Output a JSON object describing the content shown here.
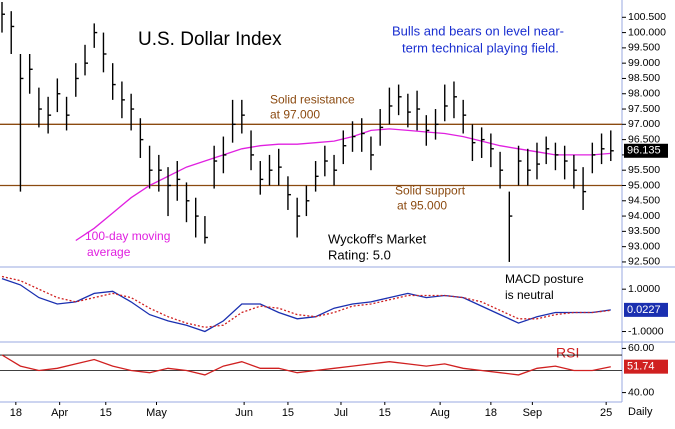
{
  "chart_data": [
    {
      "type": "ohlc",
      "title": "U.S. Dollar Index",
      "subtitle_lines": [
        "Bulls and bears on level near-",
        "term technical playing field."
      ],
      "rating_lines": [
        "Wyckoff's Market",
        "Rating: 5.0"
      ],
      "color": "#000000",
      "xlim": [
        0,
        134
      ],
      "ylim": [
        92.4,
        101.0
      ],
      "yticks": [
        {
          "value": 92.5,
          "label": "92.500"
        },
        {
          "value": 93,
          "label": "93.000"
        },
        {
          "value": 93.5,
          "label": "93.500"
        },
        {
          "value": 94,
          "label": "94.000"
        },
        {
          "value": 94.5,
          "label": "94.500"
        },
        {
          "value": 95,
          "label": "95.000"
        },
        {
          "value": 95.5,
          "label": "95.500"
        },
        {
          "value": 96,
          "label": "96.000"
        },
        {
          "value": 96.5,
          "label": "96.500"
        },
        {
          "value": 97,
          "label": "97.000"
        },
        {
          "value": 97.5,
          "label": "97.500"
        },
        {
          "value": 98,
          "label": "98.000"
        },
        {
          "value": 98.5,
          "label": "98.500"
        },
        {
          "value": 99,
          "label": "99.000"
        },
        {
          "value": 99.5,
          "label": "99.500"
        },
        {
          "value": 100,
          "label": "100.000"
        },
        {
          "value": 100.5,
          "label": "100.500"
        }
      ],
      "x": [
        0,
        2,
        4,
        6,
        8,
        10,
        12,
        14,
        16,
        18,
        20,
        22,
        24,
        26,
        28,
        30,
        32,
        34,
        36,
        38,
        40,
        42,
        44,
        46,
        48,
        50,
        52,
        54,
        56,
        58,
        60,
        62,
        64,
        66,
        68,
        70,
        72,
        74,
        76,
        78,
        80,
        82,
        84,
        86,
        88,
        90,
        92,
        94,
        96,
        98,
        100,
        102,
        104,
        106,
        108,
        110,
        112,
        114,
        116,
        118,
        120,
        122,
        124,
        126,
        128,
        130,
        132
      ],
      "high": [
        101.0,
        100.7,
        99.3,
        99.3,
        98.2,
        97.9,
        98.5,
        97.9,
        99.0,
        99.6,
        100.3,
        100.0,
        99.0,
        98.4,
        98.0,
        97.2,
        96.3,
        96.0,
        95.6,
        95.8,
        95.1,
        94.6,
        94.0,
        96.3,
        96.6,
        97.8,
        97.8,
        96.8,
        95.8,
        96.0,
        96.2,
        95.3,
        94.6,
        95.0,
        95.8,
        96.3,
        96.0,
        96.8,
        97.1,
        97.2,
        96.6,
        97.5,
        98.2,
        98.3,
        98.0,
        98.1,
        97.3,
        97.5,
        98.3,
        98.4,
        97.8,
        97.0,
        96.9,
        96.7,
        96.1,
        94.8,
        96.3,
        96.2,
        96.4,
        96.6,
        96.4,
        96.3,
        96.0,
        95.6,
        96.4,
        96.7,
        96.8
      ],
      "low": [
        100.0,
        99.3,
        94.8,
        98.0,
        96.9,
        96.7,
        97.4,
        96.8,
        97.9,
        98.6,
        99.5,
        98.7,
        97.8,
        97.2,
        96.8,
        95.9,
        94.9,
        94.8,
        94.0,
        94.5,
        93.8,
        93.3,
        93.1,
        94.9,
        95.4,
        96.4,
        96.7,
        95.5,
        94.7,
        95.0,
        95.0,
        94.2,
        93.3,
        94.0,
        94.8,
        95.3,
        95.0,
        95.7,
        96.1,
        96.1,
        95.5,
        96.3,
        97.0,
        97.3,
        96.9,
        96.8,
        96.3,
        96.5,
        97.1,
        97.2,
        96.7,
        95.8,
        95.9,
        95.6,
        94.9,
        92.5,
        95.0,
        95.0,
        95.2,
        95.7,
        95.5,
        95.2,
        94.9,
        94.2,
        95.4,
        95.7,
        95.8
      ],
      "close": [
        100.6,
        100.2,
        98.5,
        98.8,
        97.5,
        97.3,
        98.0,
        97.3,
        98.5,
        99.0,
        100.0,
        99.3,
        98.3,
        97.8,
        97.5,
        96.5,
        95.5,
        95.5,
        95.0,
        95.2,
        94.5,
        94.0,
        93.3,
        95.8,
        96.0,
        97.0,
        97.3,
        96.0,
        95.2,
        95.5,
        95.6,
        94.7,
        94.0,
        94.5,
        95.3,
        95.8,
        95.5,
        96.3,
        96.6,
        96.7,
        96.0,
        96.9,
        97.6,
        97.9,
        97.4,
        97.5,
        96.8,
        97.0,
        97.6,
        97.9,
        97.3,
        96.4,
        96.5,
        96.2,
        95.5,
        94.0,
        95.8,
        95.5,
        95.7,
        96.2,
        96.0,
        95.8,
        95.5,
        94.8,
        96.0,
        96.2,
        96.135
      ],
      "last": 96.135,
      "moving_average": {
        "label_lines": [
          "100-day moving",
          "average"
        ],
        "color": "#e020e0",
        "x": [
          16,
          20,
          24,
          28,
          32,
          36,
          40,
          44,
          48,
          52,
          56,
          60,
          64,
          68,
          72,
          76,
          80,
          84,
          88,
          92,
          96,
          100,
          104,
          108,
          112,
          116,
          120,
          124,
          128,
          132
        ],
        "values": [
          93.2,
          93.6,
          94.1,
          94.6,
          95.0,
          95.3,
          95.6,
          95.8,
          96.0,
          96.2,
          96.3,
          96.35,
          96.35,
          96.4,
          96.45,
          96.6,
          96.8,
          96.85,
          96.8,
          96.75,
          96.7,
          96.6,
          96.45,
          96.3,
          96.2,
          96.1,
          96.0,
          96.0,
          96.0,
          96.05
        ]
      },
      "levels": [
        {
          "value": 97.0,
          "label_lines": [
            "Solid resistance",
            "at 97.000"
          ],
          "color": "#8b4a10"
        },
        {
          "value": 95.0,
          "label_lines": [
            "Solid support",
            "at 95.000"
          ],
          "color": "#8b4a10"
        }
      ]
    },
    {
      "type": "line",
      "annotation_lines": [
        "MACD posture",
        "is neutral"
      ],
      "xlim": [
        0,
        134
      ],
      "ylim": [
        -1.4,
        2.0
      ],
      "yticks": [
        {
          "value": 1,
          "label": "1.0000"
        },
        {
          "value": -1,
          "label": "-1.0000"
        }
      ],
      "x": [
        0,
        4,
        8,
        12,
        16,
        20,
        24,
        28,
        32,
        36,
        40,
        44,
        48,
        52,
        56,
        60,
        64,
        68,
        72,
        76,
        80,
        84,
        88,
        92,
        96,
        100,
        104,
        108,
        112,
        116,
        120,
        124,
        128,
        132
      ],
      "series": [
        {
          "color": "#1a2fb0",
          "values": [
            1.5,
            1.2,
            0.6,
            0.3,
            0.4,
            0.8,
            0.9,
            0.4,
            -0.2,
            -0.5,
            -0.7,
            -1.0,
            -0.5,
            0.3,
            0.3,
            -0.1,
            -0.4,
            -0.3,
            0.1,
            0.3,
            0.4,
            0.6,
            0.8,
            0.6,
            0.7,
            0.6,
            0.2,
            -0.2,
            -0.6,
            -0.3,
            -0.1,
            -0.1,
            -0.1,
            0.0227
          ]
        },
        {
          "color": "#d02020",
          "dash": true,
          "values": [
            1.6,
            1.4,
            1.0,
            0.6,
            0.4,
            0.6,
            0.8,
            0.6,
            0.1,
            -0.3,
            -0.6,
            -0.8,
            -0.7,
            -0.1,
            0.2,
            0.1,
            -0.2,
            -0.3,
            -0.1,
            0.2,
            0.3,
            0.5,
            0.7,
            0.7,
            0.7,
            0.6,
            0.4,
            0.0,
            -0.4,
            -0.4,
            -0.2,
            -0.1,
            -0.1,
            0.0
          ]
        }
      ],
      "last": 0.0227,
      "last_color": "#1a2fb0"
    },
    {
      "type": "line",
      "annotation": "RSI",
      "xlim": [
        0,
        134
      ],
      "ylim": [
        38,
        62
      ],
      "yticks": [
        {
          "value": 60,
          "label": "60.00"
        },
        {
          "value": 40,
          "label": "40.00"
        }
      ],
      "ref_lines": [
        57,
        50
      ],
      "x": [
        0,
        4,
        8,
        12,
        16,
        20,
        24,
        28,
        32,
        36,
        40,
        44,
        48,
        52,
        56,
        60,
        64,
        68,
        72,
        76,
        80,
        84,
        88,
        92,
        96,
        100,
        104,
        108,
        112,
        116,
        120,
        124,
        128,
        132
      ],
      "series": [
        {
          "color": "#d02020",
          "values": [
            57,
            52,
            50,
            51,
            53,
            55,
            52,
            50,
            49,
            51,
            50,
            48,
            52,
            54,
            51,
            51,
            49,
            50,
            51,
            52,
            53,
            54,
            53,
            52,
            53,
            51,
            50,
            49,
            48,
            51,
            52,
            50,
            50,
            51.74
          ]
        }
      ],
      "last": 51.74,
      "last_color": "#d02020",
      "xticks": [
        {
          "value": 3,
          "label": "18"
        },
        {
          "value": 12.5,
          "label": "Apr"
        },
        {
          "value": 22.5,
          "label": "15"
        },
        {
          "value": 33.5,
          "label": "May"
        },
        {
          "value": 52.5,
          "label": "Jun"
        },
        {
          "value": 62,
          "label": "15"
        },
        {
          "value": 73.5,
          "label": "Jul"
        },
        {
          "value": 83,
          "label": "15"
        },
        {
          "value": 95,
          "label": "Aug"
        },
        {
          "value": 106,
          "label": "18"
        },
        {
          "value": 115,
          "label": "Sep"
        },
        {
          "value": 131,
          "label": "25"
        }
      ],
      "xlabel": "Daily"
    }
  ]
}
